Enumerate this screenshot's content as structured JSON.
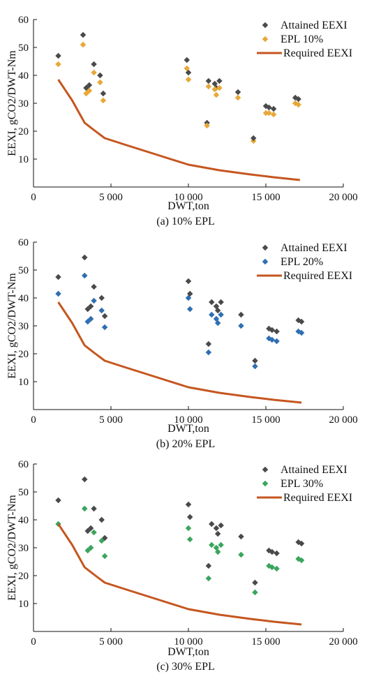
{
  "chart_data": [
    {
      "type": "scatter",
      "caption": "(a) 10% EPL",
      "xlabel": "DWT,ton",
      "ylabel": "EEXI, gCO2/DWT-Nm",
      "xlim": [
        0,
        20000
      ],
      "ylim": [
        0,
        60
      ],
      "xticks": [
        0,
        5000,
        10000,
        15000,
        20000
      ],
      "xtick_labels": [
        "0",
        "5 000",
        "10 000",
        "15 000",
        "20 000"
      ],
      "yticks": [
        10,
        20,
        30,
        40,
        50,
        60
      ],
      "ytick_labels": [
        "10",
        "20",
        "30",
        "40",
        "50",
        "60"
      ],
      "legend_position": "top-right",
      "series": [
        {
          "name": "Attained EEXI",
          "kind": "scatter",
          "color": "#4a4a4a",
          "x": [
            1600,
            3200,
            3400,
            3600,
            3900,
            4300,
            4500,
            9900,
            10000,
            11200,
            11300,
            11700,
            11800,
            12000,
            13200,
            15000,
            15200,
            15500,
            16900,
            17100
          ],
          "y": [
            47,
            54.5,
            35.5,
            36.5,
            44,
            40,
            33.5,
            45.5,
            41,
            23,
            38,
            37,
            35.5,
            38,
            34,
            29,
            28.5,
            28,
            32,
            31.5
          ]
        },
        {
          "name": "EPL 10%",
          "kind": "scatter",
          "color": "#e8a838",
          "x": [
            1600,
            3200,
            3400,
            3600,
            3900,
            4300,
            4500,
            9900,
            10000,
            11200,
            11300,
            11700,
            11800,
            12000,
            13200,
            14200,
            15000,
            15200,
            15500,
            16900,
            17100
          ],
          "y": [
            44,
            51,
            33.5,
            34.5,
            41,
            37.5,
            31,
            42.5,
            38.5,
            22,
            36,
            35,
            33,
            35.5,
            32,
            16.5,
            26.5,
            26.5,
            26,
            30,
            29.5
          ]
        },
        {
          "name": "Required EEXI",
          "kind": "line",
          "color": "#c5561f",
          "x": [
            1600,
            2500,
            3300,
            4000,
            4600,
            6000,
            8000,
            10000,
            12000,
            14000,
            15500,
            17200
          ],
          "y": [
            38.5,
            31,
            23,
            20,
            17.5,
            15,
            11.5,
            8,
            6,
            4.5,
            3.5,
            2.5
          ]
        }
      ],
      "extra_points": [
        {
          "series": "Attained EEXI",
          "x": 14200,
          "y": 17.5
        }
      ]
    },
    {
      "type": "scatter",
      "caption": "(b) 20% EPL",
      "xlabel": "DWT,ton",
      "ylabel": "EEXI, gCO2/DWT-Nm",
      "xlim": [
        0,
        20000
      ],
      "ylim": [
        0,
        60
      ],
      "xticks": [
        0,
        5000,
        10000,
        15000,
        20000
      ],
      "xtick_labels": [
        "0",
        "5 000",
        "10 000",
        "15 000",
        "20 000"
      ],
      "yticks": [
        10,
        20,
        30,
        40,
        50,
        60
      ],
      "ytick_labels": [
        "10",
        "20",
        "30",
        "40",
        "50",
        "60"
      ],
      "legend_position": "top-right",
      "series": [
        {
          "name": "Attained EEXI",
          "kind": "scatter",
          "color": "#4a4a4a",
          "x": [
            1600,
            3300,
            3500,
            3700,
            3900,
            4400,
            4600,
            10000,
            10100,
            11300,
            11500,
            11800,
            11900,
            12100,
            13400,
            14300,
            15200,
            15400,
            15700,
            17100,
            17300
          ],
          "y": [
            47.5,
            54.5,
            36,
            37,
            44,
            40,
            33.5,
            46,
            41.5,
            23.5,
            38.5,
            37,
            35.5,
            38.5,
            34,
            17.5,
            29,
            28.5,
            28,
            32,
            31.5
          ]
        },
        {
          "name": "EPL 20%",
          "kind": "scatter",
          "color": "#2f6fb2",
          "x": [
            1600,
            3300,
            3500,
            3700,
            3900,
            4400,
            4600,
            10000,
            10100,
            11300,
            11500,
            11800,
            11900,
            12100,
            13400,
            14300,
            15200,
            15400,
            15700,
            17100,
            17300
          ],
          "y": [
            41.5,
            48,
            31.5,
            32.5,
            39,
            35.5,
            29.5,
            40,
            36,
            20.5,
            34,
            32.5,
            31,
            34,
            30,
            15.5,
            25.5,
            25,
            24.5,
            28,
            27.5
          ]
        },
        {
          "name": "Required EEXI",
          "kind": "line",
          "color": "#c5561f",
          "x": [
            1600,
            2500,
            3300,
            4000,
            4600,
            6000,
            8000,
            10000,
            12000,
            14000,
            15500,
            17300
          ],
          "y": [
            38.5,
            31,
            23,
            20,
            17.5,
            15,
            11.5,
            8,
            6,
            4.5,
            3.5,
            2.5
          ]
        }
      ]
    },
    {
      "type": "scatter",
      "caption": "(c) 30% EPL",
      "xlabel": "DWT,ton",
      "ylabel": "EEXI, gCO2/DWT-Nm",
      "xlim": [
        0,
        20000
      ],
      "ylim": [
        0,
        60
      ],
      "xticks": [
        0,
        5000,
        10000,
        15000,
        20000
      ],
      "xtick_labels": [
        "0",
        "5 000",
        "10 000",
        "15 000",
        "20 000"
      ],
      "yticks": [
        10,
        20,
        30,
        40,
        50,
        60
      ],
      "ytick_labels": [
        "10",
        "20",
        "30",
        "40",
        "50",
        "60"
      ],
      "legend_position": "top-right",
      "series": [
        {
          "name": "Attained EEXI",
          "kind": "scatter",
          "color": "#4a4a4a",
          "x": [
            1600,
            3300,
            3500,
            3700,
            3900,
            4400,
            4600,
            10000,
            10100,
            11300,
            11500,
            11800,
            11900,
            12100,
            13400,
            14300,
            15200,
            15400,
            15700,
            17100,
            17300
          ],
          "y": [
            47,
            54.5,
            36,
            37,
            44,
            40,
            33.5,
            45.5,
            41,
            23.5,
            38.5,
            37,
            35,
            38,
            34,
            17.5,
            29,
            28.5,
            28,
            32,
            31.5
          ]
        },
        {
          "name": "EPL 30%",
          "kind": "scatter",
          "color": "#3aa55d",
          "x": [
            1600,
            3300,
            3500,
            3700,
            3900,
            4400,
            4600,
            10000,
            10100,
            11300,
            11500,
            11800,
            11900,
            12100,
            13400,
            14300,
            15200,
            15400,
            15700,
            17100,
            17300
          ],
          "y": [
            38.5,
            44,
            29,
            30,
            35.5,
            32.5,
            27,
            37,
            33,
            19,
            31,
            30,
            28.5,
            31,
            27.5,
            14,
            23.5,
            23,
            22.5,
            26,
            25.5
          ]
        },
        {
          "name": "Required EEXI",
          "kind": "line",
          "color": "#c5561f",
          "x": [
            1600,
            2500,
            3300,
            4000,
            4600,
            6000,
            8000,
            10000,
            12000,
            14000,
            15500,
            17300
          ],
          "y": [
            38.5,
            31,
            23,
            20,
            17.5,
            15,
            11.5,
            8,
            6,
            4.5,
            3.5,
            2.5
          ]
        }
      ]
    }
  ]
}
